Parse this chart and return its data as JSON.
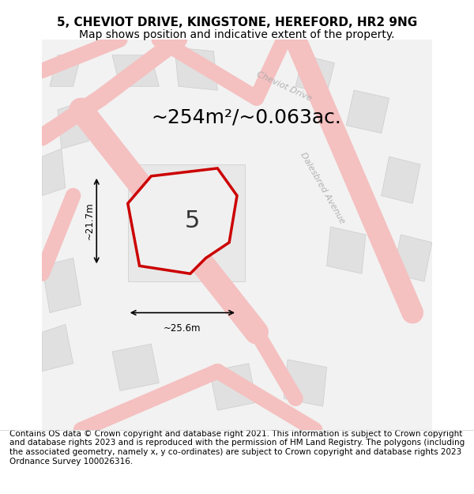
{
  "title_line1": "5, CHEVIOT DRIVE, KINGSTONE, HEREFORD, HR2 9NG",
  "title_line2": "Map shows position and indicative extent of the property.",
  "area_text": "~254m²/~0.063ac.",
  "width_label": "~25.6m",
  "height_label": "~21.7m",
  "plot_number": "5",
  "footer_text": "Contains OS data © Crown copyright and database right 2021. This information is subject to Crown copyright and database rights 2023 and is reproduced with the permission of HM Land Registry. The polygons (including the associated geometry, namely x, y co-ordinates) are subject to Crown copyright and database rights 2023 Ordnance Survey 100026316.",
  "bg_color": "#f5f5f5",
  "map_bg": "#f0f0f0",
  "road_color": "#f5c0c0",
  "road_outline": "#e8a8a8",
  "block_color": "#e0e0e0",
  "block_outline": "#cccccc",
  "plot_outline_color": "#cc0000",
  "plot_fill_color": "#f0f0f0",
  "street_label_color": "#aaaaaa",
  "title_fontsize": 11,
  "subtitle_fontsize": 10,
  "area_fontsize": 18,
  "plot_num_fontsize": 22,
  "footer_fontsize": 7.5
}
